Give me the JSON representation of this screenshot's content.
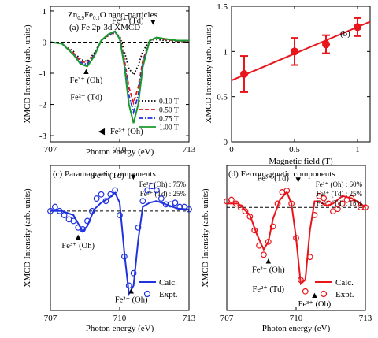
{
  "colors": {
    "black": "#000000",
    "red": "#e8151b",
    "blue": "#1f33e0",
    "green": "#1a9a2e",
    "axis": "#000000"
  },
  "chart_data": [
    {
      "id": "a",
      "type": "line",
      "title_line1": "Zn",
      "title_sub1": "0.9",
      "title_mid": "Fe",
      "title_sub2": "0.1",
      "title_end": "O nano-particles",
      "panel_label": "(a) Fe 2p-3d XMCD",
      "xlabel": "Photon energy (eV)",
      "ylabel": "",
      "xlim": [
        707,
        713
      ],
      "ylim": [
        -3.2,
        1.15
      ],
      "xticks": [
        707,
        710,
        713
      ],
      "xtick_labels": [
        "707",
        "710",
        "713"
      ],
      "yticks": [
        1,
        0,
        -1,
        -2,
        -3
      ],
      "ytick_labels": [
        "1",
        "0",
        "-1",
        "-2",
        "-3"
      ],
      "zero_line": "dashed",
      "annotations": [
        {
          "text": "Fe³⁺ (Td)",
          "x": 710.35,
          "y": 0.6,
          "arrow": "down"
        },
        {
          "text": "Fe³⁺ (Oh)",
          "x": 708.55,
          "y": -1.3,
          "arrow": "up"
        },
        {
          "text": "Fe²⁺ (Td)",
          "x": 708.55,
          "y": -1.85,
          "arrow": "none"
        },
        {
          "text": "Fe³⁺ (Oh)",
          "x": 710.3,
          "y": -2.95,
          "arrow": "left"
        }
      ],
      "legend_position": "lower-right",
      "series": [
        {
          "name": "0.10 T",
          "color": "#000000",
          "style": "dotted",
          "x": [
            707,
            707.5,
            708,
            708.3,
            708.6,
            708.9,
            709.2,
            709.5,
            709.8,
            710.0,
            710.2,
            710.4,
            710.6,
            710.8,
            711.0,
            711.3,
            711.6,
            712.0,
            712.5,
            713
          ],
          "y": [
            0,
            -0.05,
            -0.3,
            -0.55,
            -0.62,
            -0.35,
            0.05,
            0.2,
            0.3,
            0.2,
            -0.3,
            -0.85,
            -1.05,
            -0.75,
            -0.3,
            0.05,
            0.08,
            0.05,
            0.02,
            0.02
          ]
        },
        {
          "name": "0.50 T",
          "color": "#e8151b",
          "style": "dashed",
          "x": [
            707,
            707.5,
            708,
            708.3,
            708.6,
            708.9,
            709.2,
            709.5,
            709.8,
            710.0,
            710.2,
            710.4,
            710.6,
            710.8,
            711.0,
            711.3,
            711.6,
            712.0,
            712.5,
            713
          ],
          "y": [
            0,
            -0.05,
            -0.35,
            -0.6,
            -0.68,
            -0.4,
            0.05,
            0.22,
            0.32,
            0.15,
            -0.55,
            -1.45,
            -1.95,
            -1.45,
            -0.6,
            0.05,
            0.12,
            0.08,
            0.03,
            0.03
          ]
        },
        {
          "name": "0.75 T",
          "color": "#1f33e0",
          "style": "dashdot",
          "x": [
            707,
            707.5,
            708,
            708.3,
            708.6,
            708.9,
            709.2,
            709.5,
            709.8,
            710.0,
            710.2,
            710.4,
            710.6,
            710.8,
            711.0,
            711.3,
            711.6,
            712.0,
            712.5,
            713
          ],
          "y": [
            0,
            -0.05,
            -0.38,
            -0.65,
            -0.72,
            -0.42,
            0.05,
            0.23,
            0.33,
            0.12,
            -0.65,
            -1.7,
            -2.25,
            -1.7,
            -0.7,
            0.05,
            0.14,
            0.1,
            0.04,
            0.04
          ]
        },
        {
          "name": "1.00 T",
          "color": "#1a9a2e",
          "style": "solid",
          "x": [
            707,
            707.5,
            708,
            708.3,
            708.6,
            708.9,
            709.2,
            709.5,
            709.8,
            710.0,
            710.2,
            710.4,
            710.6,
            710.8,
            711.0,
            711.3,
            711.6,
            712.0,
            712.5,
            713
          ],
          "y": [
            0,
            -0.05,
            -0.4,
            -0.7,
            -0.78,
            -0.45,
            0.05,
            0.25,
            0.35,
            0.1,
            -0.75,
            -2.0,
            -2.6,
            -2.0,
            -0.8,
            0.05,
            0.15,
            0.1,
            0.05,
            0.05
          ]
        }
      ]
    },
    {
      "id": "b",
      "type": "line",
      "panel_label": "(b)",
      "xlabel": "Magnetic field (T)",
      "ylabel": "XMCD Intensity (arb. units)",
      "xlim": [
        0,
        1.1
      ],
      "ylim": [
        0,
        1.5
      ],
      "xticks": [
        0,
        0.5,
        1
      ],
      "xtick_labels": [
        "0",
        "0.5",
        "1"
      ],
      "yticks": [
        0,
        0.5,
        1,
        1.5
      ],
      "ytick_labels": [
        "0",
        "0.5",
        "1",
        "1.5"
      ],
      "series": [
        {
          "name": "data",
          "color": "#e8151b",
          "style": "solid-markers",
          "x": [
            0.1,
            0.5,
            0.75,
            1.0
          ],
          "y": [
            0.75,
            1.0,
            1.08,
            1.27
          ],
          "err": [
            0.2,
            0.15,
            0.1,
            0.1
          ]
        }
      ],
      "fit_line": {
        "x": [
          0,
          1.1
        ],
        "y": [
          0.68,
          1.33
        ]
      }
    },
    {
      "id": "c",
      "type": "line",
      "panel_label": "(c) Paramagnetic components",
      "xlabel": "Photon energy (eV)",
      "ylabel": "XMCD Intensity (arb. units)",
      "xlim": [
        707,
        713
      ],
      "ylim": [
        -1.2,
        0.55
      ],
      "xticks": [
        707,
        710,
        713
      ],
      "xtick_labels": [
        "707",
        "710",
        "713"
      ],
      "zero_line": "dashed",
      "composition": [
        "Fe³⁺ (Oh) : 75%",
        "Fe³⁺ (Td) : 25%"
      ],
      "annotations": [
        {
          "text": "Fe³⁺ (Td)",
          "x": 709.5,
          "y": 0.4,
          "arrow": "down"
        },
        {
          "text": "Fe³⁺ (Oh)",
          "x": 708.2,
          "y": -0.45,
          "arrow": "up"
        },
        {
          "text": "Fe³⁺ (Oh)",
          "x": 710.5,
          "y": -1.1,
          "arrow": "up"
        }
      ],
      "legend": [
        "Calc.",
        "Expt."
      ],
      "legend_position": "lower-right",
      "series": [
        {
          "name": "Calc.",
          "color": "#1f33e0",
          "style": "solid",
          "x": [
            707,
            707.5,
            708,
            708.2,
            708.4,
            708.6,
            708.9,
            709.2,
            709.5,
            709.8,
            710.0,
            710.2,
            710.4,
            710.6,
            710.8,
            711.0,
            711.3,
            711.6,
            712.0,
            712.5,
            713
          ],
          "y": [
            0,
            0,
            -0.05,
            -0.15,
            -0.25,
            -0.18,
            0.02,
            0.1,
            0.15,
            0.22,
            0.1,
            -0.5,
            -1.0,
            -0.9,
            -0.35,
            0.05,
            0.1,
            0.12,
            0.08,
            0.03,
            0.02
          ]
        },
        {
          "name": "Expt.",
          "color": "#1f33e0",
          "style": "markers-open",
          "x": [
            707.0,
            707.2,
            707.4,
            707.6,
            707.8,
            708.0,
            708.2,
            708.4,
            708.6,
            708.8,
            709.0,
            709.2,
            709.4,
            709.6,
            709.8,
            710.0,
            710.2,
            710.4,
            710.6,
            710.8,
            711.0,
            711.2,
            711.4,
            711.6,
            711.8,
            712.0,
            712.2,
            712.4,
            712.6,
            712.8,
            713.0
          ],
          "y": [
            0.0,
            0.05,
            0.0,
            -0.05,
            -0.1,
            -0.12,
            -0.2,
            -0.22,
            -0.12,
            0.0,
            0.15,
            0.2,
            0.12,
            0.2,
            0.25,
            -0.05,
            -0.55,
            -0.9,
            -0.75,
            -0.2,
            0.12,
            0.25,
            0.3,
            0.25,
            0.15,
            0.08,
            0.08,
            0.1,
            0.05,
            0.05,
            0.02
          ]
        }
      ]
    },
    {
      "id": "d",
      "type": "line",
      "panel_label": "(d) Ferromagnetic components",
      "xlabel": "Photon energy (eV)",
      "ylabel": "XMCD Intensity (arb. units)",
      "xlim": [
        707,
        713
      ],
      "ylim": [
        -1.35,
        0.55
      ],
      "xticks": [
        707,
        710,
        713
      ],
      "xtick_labels": [
        "707",
        "710",
        "713"
      ],
      "zero_line": "dashed",
      "composition": [
        "Fe³⁺ (Oh) : 60%",
        "Fe³⁺ (Td) : 25%",
        "Fe²⁺ (Td) : 15%"
      ],
      "annotations": [
        {
          "text": "Fe³⁺ (Td)",
          "x": 709.0,
          "y": 0.35,
          "arrow": "down"
        },
        {
          "text": "Fe³⁺ (Oh)",
          "x": 708.8,
          "y": -0.85,
          "arrow": "up"
        },
        {
          "text": "Fe²⁺ (Td)",
          "x": 708.8,
          "y": -1.1,
          "arrow": "none"
        },
        {
          "text": "Fe³⁺ (Oh)",
          "x": 710.8,
          "y": -1.3,
          "arrow": "up"
        }
      ],
      "legend": [
        "Calc.",
        "Expt."
      ],
      "legend_position": "lower-right",
      "series": [
        {
          "name": "Calc.",
          "color": "#e8151b",
          "style": "solid",
          "x": [
            707,
            707.5,
            708,
            708.3,
            708.6,
            708.8,
            709.0,
            709.3,
            709.6,
            709.8,
            710.0,
            710.2,
            710.4,
            710.6,
            710.8,
            711.0,
            711.3,
            711.6,
            712.0,
            712.4,
            712.8,
            713
          ],
          "y": [
            0.05,
            0.05,
            -0.1,
            -0.35,
            -0.55,
            -0.45,
            -0.15,
            0.1,
            0.2,
            0.05,
            -0.4,
            -1.0,
            -0.95,
            -0.3,
            0.08,
            0.08,
            0.02,
            0.05,
            0.15,
            0.12,
            0.05,
            0.0
          ]
        },
        {
          "name": "Expt.",
          "color": "#e8151b",
          "style": "markers-open",
          "x": [
            707.0,
            707.2,
            707.4,
            707.6,
            707.8,
            708.0,
            708.2,
            708.4,
            708.6,
            708.8,
            709.0,
            709.2,
            709.4,
            709.6,
            709.8,
            710.0,
            710.2,
            710.4,
            710.6,
            710.8,
            711.0,
            711.2,
            711.4,
            711.6,
            711.8,
            712.0,
            712.2,
            712.4,
            712.6,
            712.8,
            713.0
          ],
          "y": [
            0.08,
            0.1,
            0.05,
            0.0,
            -0.05,
            -0.12,
            -0.3,
            -0.5,
            -0.62,
            -0.45,
            -0.25,
            0.05,
            0.2,
            0.22,
            0.05,
            -0.4,
            -0.95,
            -1.1,
            -0.65,
            -0.1,
            0.15,
            0.12,
            0.05,
            -0.05,
            -0.02,
            0.05,
            0.1,
            0.12,
            0.05,
            0.0,
            0.0
          ]
        }
      ]
    }
  ]
}
